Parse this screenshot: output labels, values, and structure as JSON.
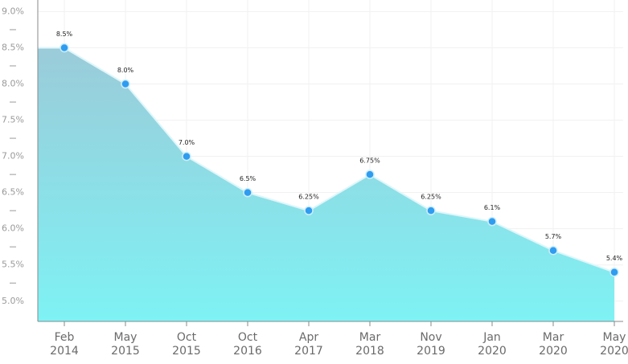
{
  "chart_data": {
    "type": "area",
    "categories": [
      "Feb 2014",
      "May 2015",
      "Oct 2015",
      "Oct 2016",
      "Apr 2017",
      "Mar 2018",
      "Nov 2019",
      "Jan 2020",
      "Mar 2020",
      "May 2020"
    ],
    "values": [
      8.5,
      8.0,
      7.0,
      6.5,
      6.25,
      6.75,
      6.25,
      6.1,
      5.7,
      5.4
    ],
    "value_labels": [
      "8.5%",
      "8.0%",
      "7.0%",
      "6.5%",
      "6.25%",
      "6.75%",
      "6.25%",
      "6.1%",
      "5.7%",
      "5.4%"
    ],
    "ylim": [
      4.72,
      9.16
    ],
    "yticks": [
      {
        "value": 5,
        "label": "5.0%"
      },
      {
        "value": 5.5,
        "label": "5.5%"
      },
      {
        "value": 6,
        "label": "6.0%"
      },
      {
        "value": 6.5,
        "label": "6.5%"
      },
      {
        "value": 7,
        "label": "7.0%"
      },
      {
        "value": 7.5,
        "label": "7.5%"
      },
      {
        "value": 8,
        "label": "8.0%"
      },
      {
        "value": 8.5,
        "label": "8.5%"
      },
      {
        "value": 9,
        "label": "9.0%"
      }
    ],
    "minor_yticks": [
      5.25,
      5.75,
      6.25,
      6.75,
      7.25,
      7.75,
      8.25,
      8.75
    ],
    "color": "#2f9cf0",
    "grid": true
  }
}
